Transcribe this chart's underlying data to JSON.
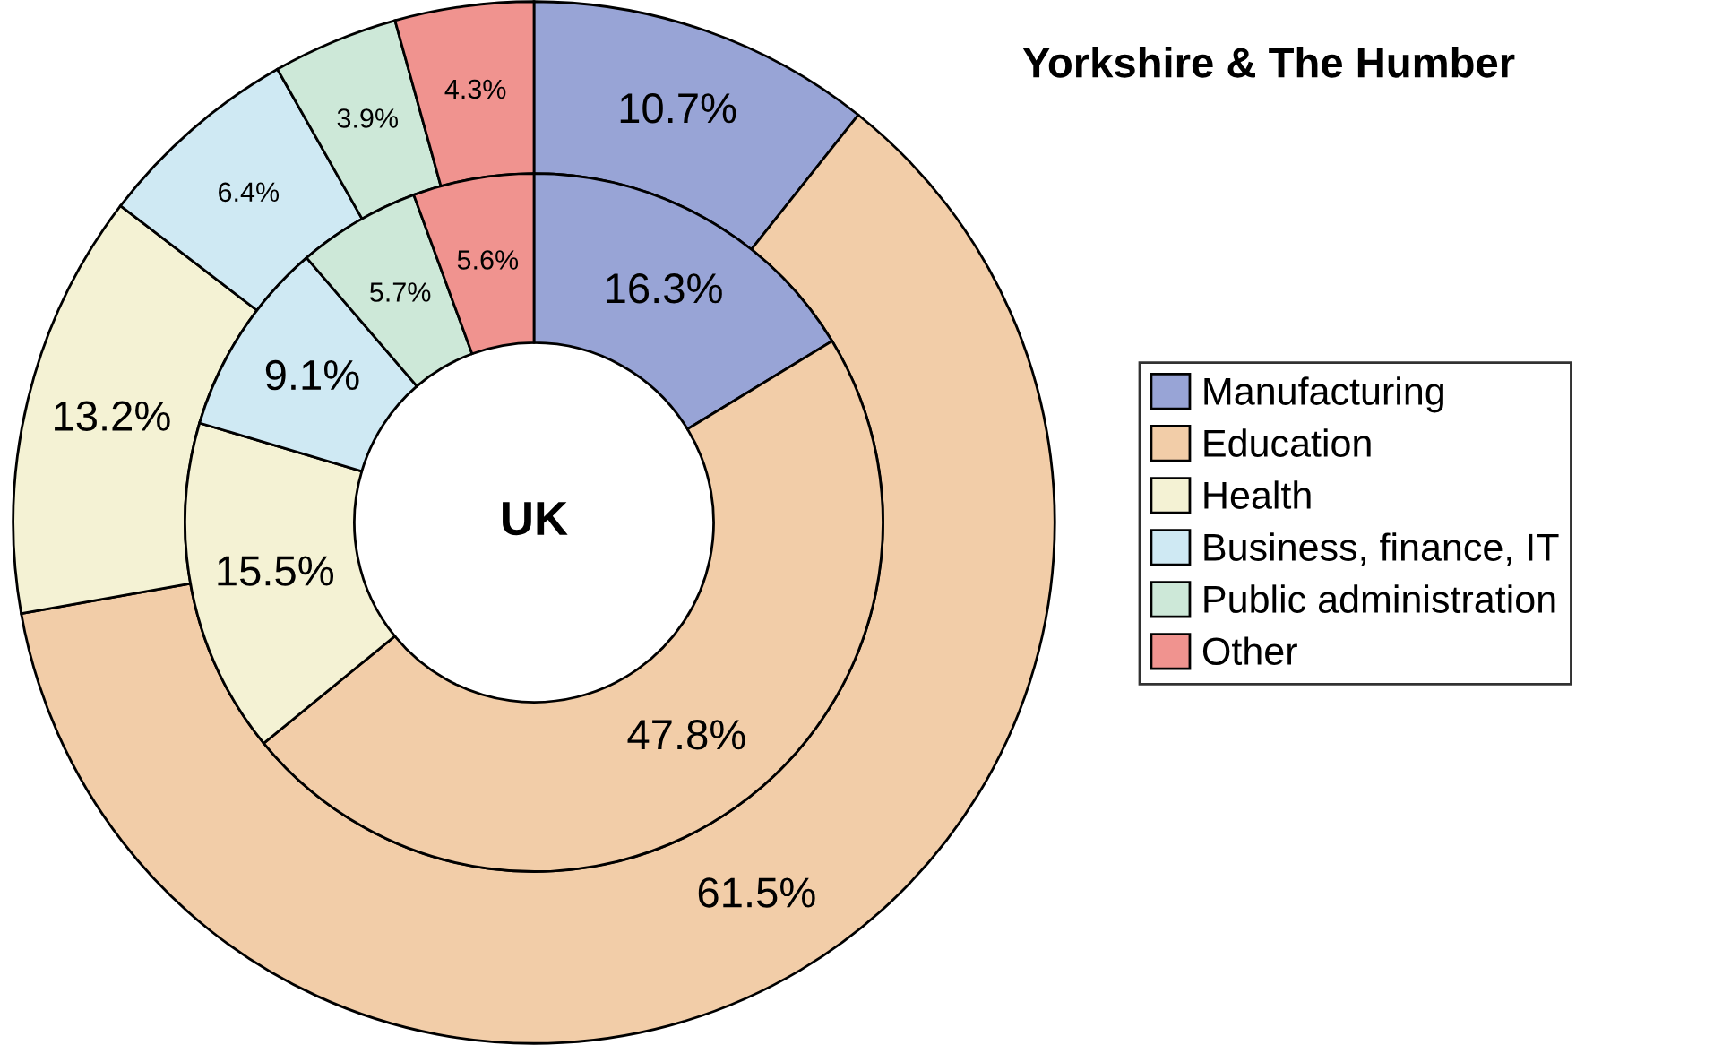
{
  "chart_data": {
    "type": "donut",
    "categories": [
      "Manufacturing",
      "Education",
      "Health",
      "Business, finance, IT",
      "Public administration",
      "Other"
    ],
    "colors": [
      "#98a4d6",
      "#f2cda8",
      "#f4f2d4",
      "#cfe9f3",
      "#cde8d8",
      "#f0938f"
    ],
    "legend": "right",
    "series": [
      {
        "name": "Yorkshire & The Humber",
        "values": [
          10.7,
          61.5,
          13.2,
          6.4,
          3.9,
          4.3
        ],
        "value_labels": [
          "10.7%",
          "61.5%",
          "13.2%",
          "6.4%",
          "3.9%",
          "4.3%"
        ]
      },
      {
        "name": "UK",
        "values": [
          16.3,
          47.8,
          15.5,
          9.1,
          5.7,
          5.6
        ],
        "value_labels": [
          "16.3%",
          "47.8%",
          "15.5%",
          "9.1%",
          "5.7%",
          "5.6%"
        ]
      }
    ]
  }
}
